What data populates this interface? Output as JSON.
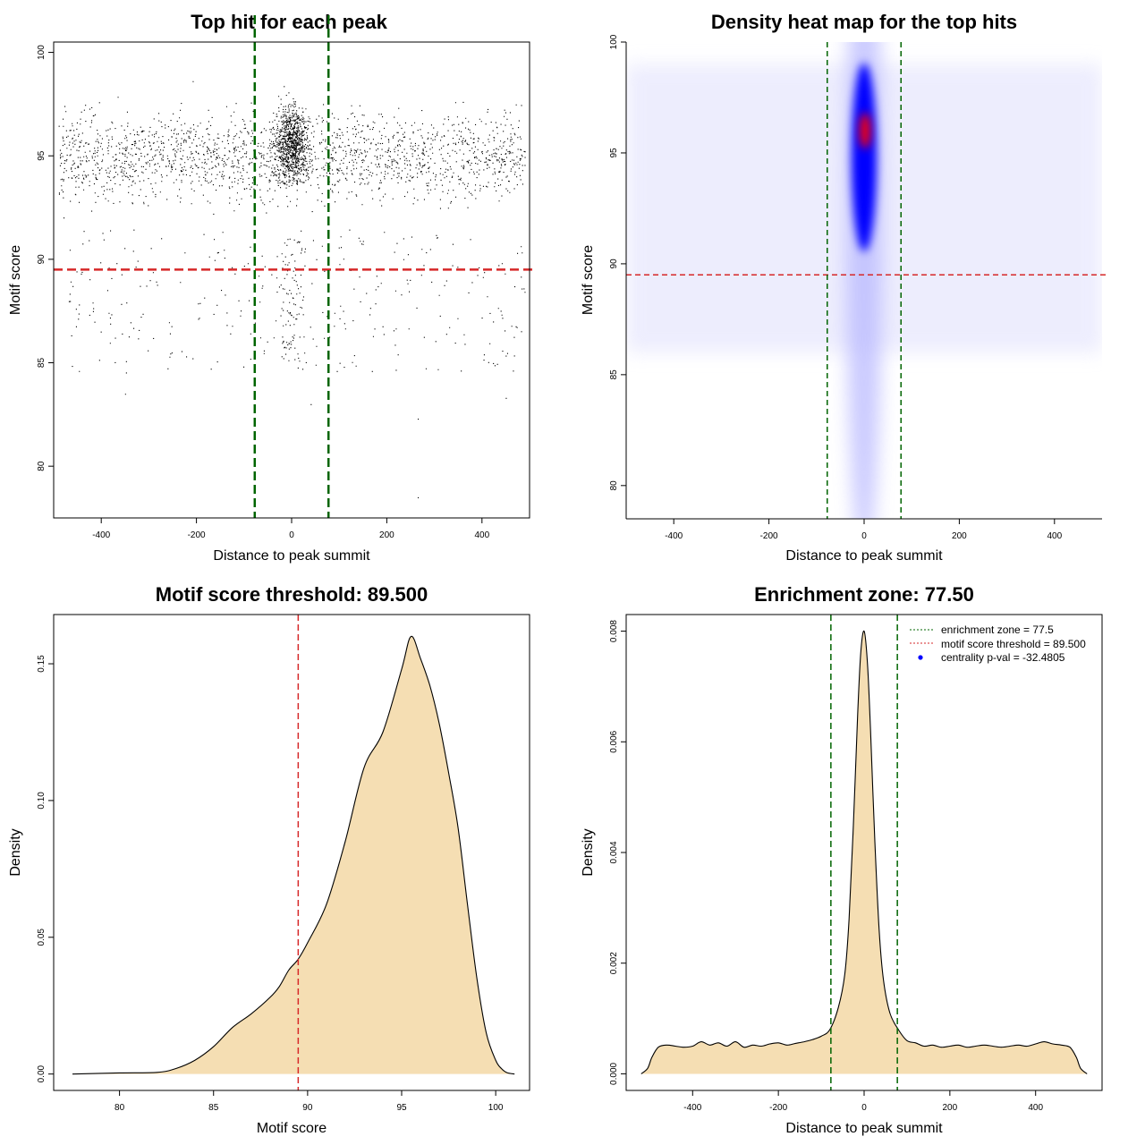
{
  "chart_data": [
    {
      "id": "scatter",
      "type": "scatter",
      "title": "Top hit for each peak",
      "xlabel": "Distance to peak summit",
      "ylabel": "Motif score",
      "xlim": [
        -500,
        500
      ],
      "ylim": [
        77.5,
        100.5
      ],
      "xticks": [
        "-400",
        "-200",
        "0",
        "200",
        "400"
      ],
      "yticks": [
        "80",
        "85",
        "90",
        "95",
        "100"
      ],
      "n_points_approx": 9000,
      "score_threshold": 89.5,
      "enrichment_zone": [
        -77.5,
        77.5
      ],
      "colors": {
        "points": "#000000",
        "threshold": "#d62728",
        "zone": "#006400"
      }
    },
    {
      "id": "heatmap",
      "type": "heatmap",
      "title": "Density heat map for the top hits",
      "xlabel": "Distance to peak summit",
      "ylabel": "Motif score",
      "xlim": [
        -500,
        500
      ],
      "ylim": [
        78.5,
        100
      ],
      "xticks": [
        "-400",
        "-200",
        "0",
        "200",
        "400"
      ],
      "yticks": [
        "80",
        "85",
        "90",
        "95",
        "100"
      ],
      "hotspot": {
        "x": 0,
        "y": 96
      },
      "score_threshold": 89.5,
      "enrichment_zone": [
        -77.5,
        77.5
      ],
      "colormap": [
        "#ffffff",
        "#0000ff",
        "#ff0000"
      ],
      "colors": {
        "threshold": "#d62728",
        "zone": "#006400"
      }
    },
    {
      "id": "score-density",
      "type": "area",
      "title": "Motif score threshold: 89.500",
      "xlabel": "Motif score",
      "ylabel": "Density",
      "xlim": [
        76.5,
        101.8
      ],
      "ylim": [
        -0.006,
        0.168
      ],
      "xticks": [
        "80",
        "85",
        "90",
        "95",
        "100"
      ],
      "yticks": [
        "0.00",
        "0.05",
        "0.10",
        "0.15"
      ],
      "x": [
        77.5,
        80,
        82,
        83,
        84,
        85,
        86,
        87,
        88,
        88.5,
        89,
        89.5,
        90,
        91,
        92,
        93,
        94,
        95,
        95.5,
        96,
        96.5,
        97,
        97.5,
        98,
        98.5,
        99,
        99.5,
        100,
        100.3,
        100.6,
        101
      ],
      "y": [
        0,
        0.0004,
        0.0006,
        0.002,
        0.005,
        0.01,
        0.017,
        0.022,
        0.028,
        0.032,
        0.038,
        0.042,
        0.048,
        0.062,
        0.085,
        0.112,
        0.125,
        0.148,
        0.16,
        0.152,
        0.142,
        0.128,
        0.11,
        0.09,
        0.062,
        0.035,
        0.015,
        0.005,
        0.002,
        0.0005,
        0
      ],
      "threshold": 89.5,
      "colors": {
        "fill": "#f5deb3",
        "line": "#000000",
        "threshold": "#d62728"
      }
    },
    {
      "id": "distance-density",
      "type": "area",
      "title": "Enrichment zone: 77.50",
      "xlabel": "Distance to peak summit",
      "ylabel": "Density",
      "xlim": [
        -555,
        555
      ],
      "ylim": [
        -0.0003,
        0.0083
      ],
      "xticks": [
        "-400",
        "-200",
        "0",
        "200",
        "400"
      ],
      "yticks": [
        "0.000",
        "0.002",
        "0.004",
        "0.006",
        "0.008"
      ],
      "x": [
        -520,
        -505,
        -495,
        -480,
        -460,
        -440,
        -420,
        -400,
        -380,
        -360,
        -340,
        -320,
        -300,
        -280,
        -260,
        -240,
        -220,
        -200,
        -180,
        -160,
        -140,
        -120,
        -100,
        -80,
        -60,
        -45,
        -35,
        -25,
        -15,
        -8,
        0,
        8,
        15,
        25,
        35,
        45,
        60,
        80,
        100,
        120,
        140,
        160,
        180,
        200,
        220,
        240,
        260,
        280,
        300,
        320,
        340,
        360,
        380,
        400,
        420,
        440,
        460,
        480,
        495,
        505,
        520
      ],
      "y": [
        0,
        0.0001,
        0.0003,
        0.00048,
        0.00052,
        0.0005,
        0.00048,
        0.0005,
        0.00058,
        0.00052,
        0.00056,
        0.0005,
        0.00058,
        0.00048,
        0.00052,
        0.0005,
        0.00054,
        0.00056,
        0.00052,
        0.00055,
        0.00058,
        0.00062,
        0.00068,
        0.0008,
        0.0012,
        0.0018,
        0.0028,
        0.0045,
        0.0065,
        0.0076,
        0.008,
        0.0074,
        0.0062,
        0.0042,
        0.0026,
        0.0017,
        0.0011,
        0.0008,
        0.0006,
        0.00056,
        0.0005,
        0.00052,
        0.00048,
        0.0005,
        0.00052,
        0.00048,
        0.0005,
        0.00052,
        0.0005,
        0.00048,
        0.0005,
        0.00052,
        0.0005,
        0.00054,
        0.00058,
        0.00054,
        0.00052,
        0.00048,
        0.0003,
        0.0001,
        0
      ],
      "zone": [
        -77.5,
        77.5
      ],
      "legend": {
        "placement": "top-right",
        "items": [
          {
            "label": "enrichment zone = 77.5",
            "kind": "dotted-line",
            "color": "#006400"
          },
          {
            "label": "motif score threshold = 89.500",
            "kind": "dotted-line",
            "color": "#d62728"
          },
          {
            "label": "centrality p-val = -32.4805",
            "kind": "point",
            "color": "#0000ff"
          }
        ]
      },
      "colors": {
        "fill": "#f5deb3",
        "line": "#000000",
        "zone": "#006400"
      }
    }
  ]
}
